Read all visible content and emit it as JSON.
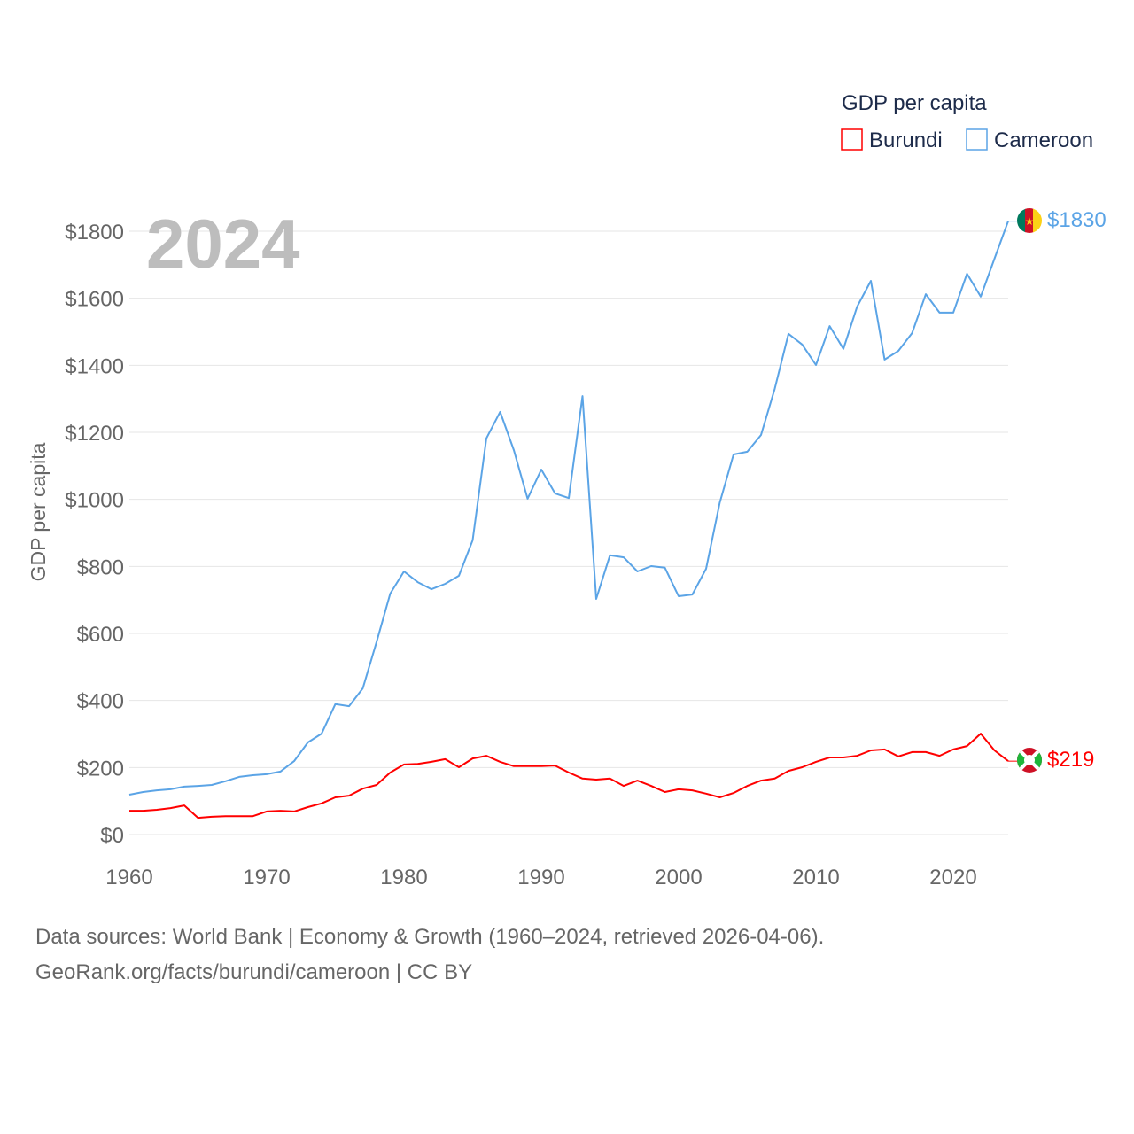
{
  "chart_data": {
    "type": "line",
    "year_label": "2024",
    "ylabel": "GDP per capita",
    "xlim": [
      1960,
      2024
    ],
    "ylim": [
      0,
      1900
    ],
    "x_ticks": [
      1960,
      1970,
      1980,
      1990,
      2000,
      2010,
      2020
    ],
    "y_ticks": [
      0,
      200,
      400,
      600,
      800,
      1000,
      1200,
      1400,
      1600,
      1800
    ],
    "y_tick_prefix": "$",
    "grid": true,
    "legend": {
      "title": "GDP per capita",
      "position": "top-right"
    },
    "x": [
      1960,
      1961,
      1962,
      1963,
      1964,
      1965,
      1966,
      1967,
      1968,
      1969,
      1970,
      1971,
      1972,
      1973,
      1974,
      1975,
      1976,
      1977,
      1978,
      1979,
      1980,
      1981,
      1982,
      1983,
      1984,
      1985,
      1986,
      1987,
      1988,
      1989,
      1990,
      1991,
      1992,
      1993,
      1994,
      1995,
      1996,
      1997,
      1998,
      1999,
      2000,
      2001,
      2002,
      2003,
      2004,
      2005,
      2006,
      2007,
      2008,
      2009,
      2010,
      2011,
      2012,
      2013,
      2014,
      2015,
      2016,
      2017,
      2018,
      2019,
      2020,
      2021,
      2022,
      2023,
      2024
    ],
    "series": [
      {
        "name": "Burundi",
        "color": "#ff0000",
        "end_label": "$219",
        "values": [
          71,
          71,
          74,
          79,
          87,
          50,
          53,
          55,
          55,
          55,
          69,
          71,
          69,
          82,
          93,
          111,
          116,
          137,
          148,
          185,
          209,
          211,
          217,
          225,
          201,
          227,
          235,
          217,
          204,
          204,
          204,
          206,
          185,
          167,
          164,
          167,
          145,
          161,
          145,
          127,
          135,
          132,
          122,
          111,
          124,
          145,
          161,
          167,
          190,
          201,
          217,
          230,
          230,
          235,
          251,
          254,
          233,
          246,
          246,
          235,
          254,
          264,
          301,
          251,
          219
        ]
      },
      {
        "name": "Cameroon",
        "color": "#5ba4e6",
        "end_label": "$1830",
        "values": [
          119,
          127,
          132,
          135,
          143,
          145,
          148,
          159,
          172,
          177,
          180,
          188,
          219,
          275,
          301,
          389,
          383,
          436,
          574,
          719,
          785,
          753,
          732,
          748,
          772,
          878,
          1182,
          1261,
          1147,
          1002,
          1089,
          1018,
          1004,
          1308,
          703,
          833,
          827,
          785,
          801,
          796,
          711,
          716,
          793,
          991,
          1134,
          1142,
          1192,
          1330,
          1494,
          1462,
          1401,
          1517,
          1449,
          1575,
          1652,
          1417,
          1443,
          1496,
          1612,
          1557,
          1557,
          1673,
          1605,
          1718,
          1830
        ]
      }
    ]
  },
  "footer": {
    "line1": "Data sources: World Bank | Economy & Growth (1960–2024, retrieved 2026-04-06).",
    "line2": "GeoRank.org/facts/burundi/cameroon | CC BY"
  }
}
